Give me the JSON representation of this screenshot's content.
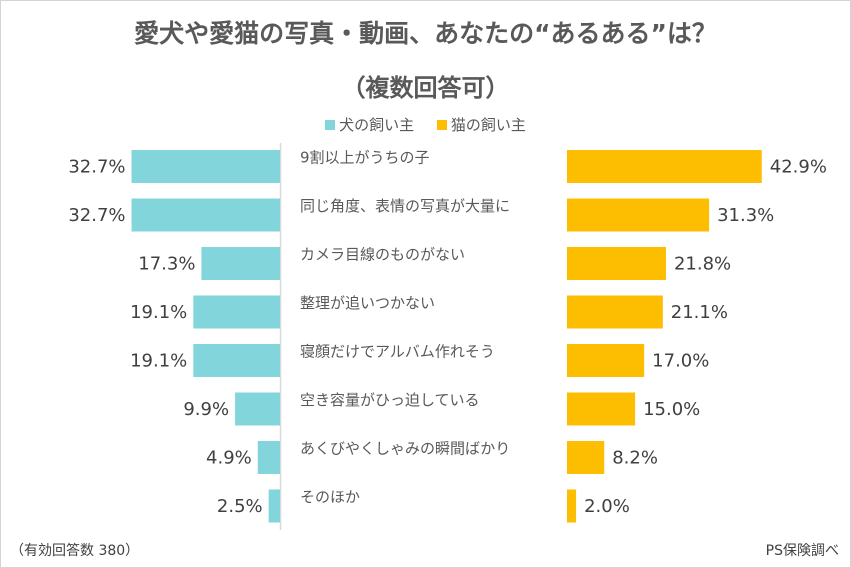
{
  "title": "愛犬や愛猫の写真・動画、あなたの“あるある”は？",
  "subtitle": "（複数回答可）",
  "legend": [
    {
      "label": "犬の飼い主",
      "color": "#82d5db"
    },
    {
      "label": "猫の飼い主",
      "color": "#fdbd00"
    }
  ],
  "footnote_left": "（有効回答数 380）",
  "footnote_right": "PS保険調べ",
  "chart_data": {
    "type": "bar",
    "orientation": "horizontal-butterfly",
    "title": "愛犬や愛猫の写真・動画、あなたの“あるある”は？",
    "subtitle": "（複数回答可）",
    "unit": "%",
    "categories": [
      "9割以上がうちの子",
      "同じ角度、表情の写真が大量に",
      "カメラ目線のものがない",
      "整理が追いつかない",
      "寝顔だけでアルバム作れそう",
      "空き容量がひっ迫している",
      "あくびやくしゃみの瞬間ばかり",
      "そのほか"
    ],
    "series": [
      {
        "name": "犬の飼い主",
        "color": "#82d5db",
        "side": "left",
        "values": [
          32.7,
          32.7,
          17.3,
          19.1,
          19.1,
          9.9,
          4.9,
          2.5
        ],
        "labels": [
          "32.7%",
          "32.7%",
          "17.3%",
          "19.1%",
          "19.1%",
          "9.9%",
          "4.9%",
          "2.5%"
        ]
      },
      {
        "name": "猫の飼い主",
        "color": "#fdbd00",
        "side": "right",
        "values": [
          42.9,
          31.3,
          21.8,
          21.1,
          17.0,
          15.0,
          8.2,
          2.0
        ],
        "labels": [
          "42.9%",
          "31.3%",
          "21.8%",
          "21.1%",
          "17.0%",
          "15.0%",
          "8.2%",
          "2.0%"
        ]
      }
    ],
    "legend_position": "top-center",
    "grid": false,
    "sample_size": 380
  }
}
